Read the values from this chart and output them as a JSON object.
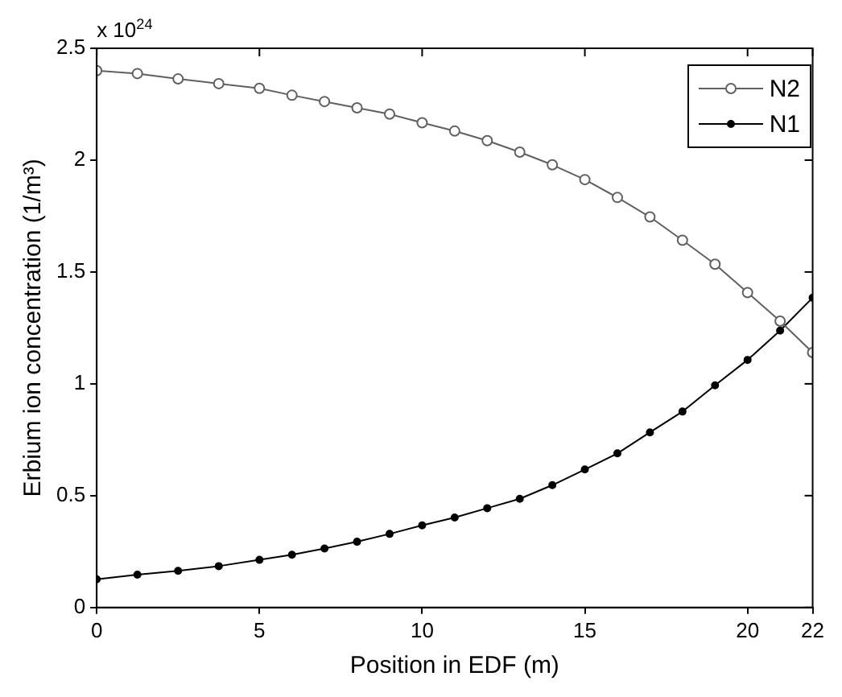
{
  "chart_data": {
    "type": "line",
    "xlabel": "Position in EDF (m)",
    "ylabel": "Erbium ion concentration (1/m³)",
    "annotations": [
      "x 10$^{24}$"
    ],
    "xlim": [
      0,
      22
    ],
    "xticks": [
      0,
      5,
      10,
      15,
      20,
      22
    ],
    "ylim": [
      0,
      2.5
    ],
    "yticks": [
      0,
      0.5,
      1,
      1.5,
      2,
      2.5
    ],
    "x": [
      0,
      1.25,
      2.5,
      3.75,
      5,
      6,
      7,
      8,
      9,
      10,
      11,
      12,
      13,
      14,
      15,
      16,
      17,
      18,
      19,
      20,
      21,
      22
    ],
    "grid": false,
    "legend": "top right",
    "series": [
      {
        "name": "N2",
        "color": "#606060",
        "marker": "circle",
        "values": [
          2.4,
          2.387,
          2.363,
          2.342,
          2.321,
          2.29,
          2.262,
          2.234,
          2.206,
          2.167,
          2.13,
          2.087,
          2.036,
          1.979,
          1.913,
          1.833,
          1.746,
          1.642,
          1.535,
          1.408,
          1.28,
          1.14
        ]
      },
      {
        "name": "N1",
        "color": "#000000",
        "marker": "dot",
        "values": [
          0.126,
          0.147,
          0.164,
          0.185,
          0.213,
          0.236,
          0.264,
          0.294,
          0.329,
          0.367,
          0.402,
          0.444,
          0.486,
          0.547,
          0.617,
          0.689,
          0.783,
          0.876,
          0.993,
          1.107,
          1.238,
          1.385
        ]
      }
    ]
  }
}
